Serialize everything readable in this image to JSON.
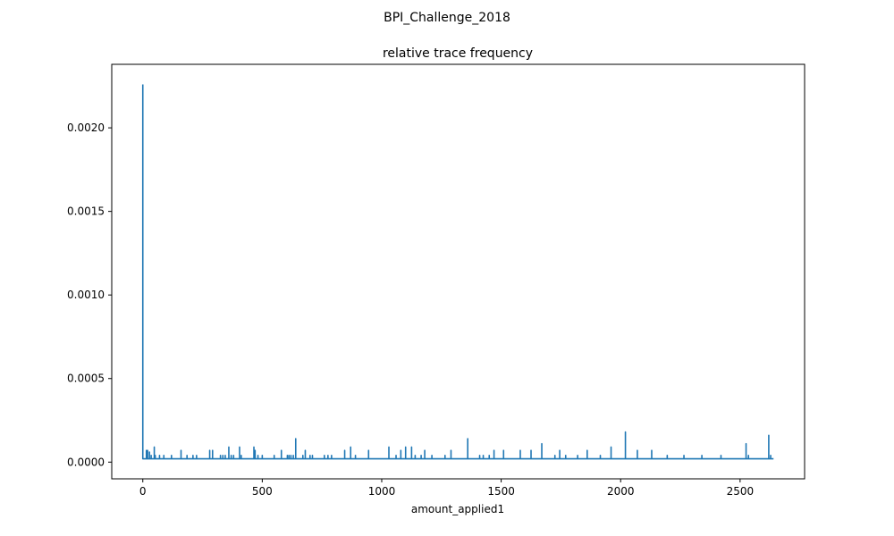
{
  "figure": {
    "suptitle": "BPI_Challenge_2018"
  },
  "chart_data": {
    "type": "line",
    "title": "relative trace frequency",
    "xlabel": "amount_applied1",
    "ylabel": "",
    "xlim": [
      -130,
      2770
    ],
    "ylim": [
      -0.0001,
      0.00238
    ],
    "xticks": [
      0,
      500,
      1000,
      1500,
      2000,
      2500
    ],
    "xtick_labels": [
      "0",
      "500",
      "1000",
      "1500",
      "2000",
      "2500"
    ],
    "yticks": [
      0.0,
      0.0005,
      0.001,
      0.0015,
      0.002
    ],
    "ytick_labels": [
      "0.0000",
      "0.0005",
      "0.0010",
      "0.0015",
      "0.0020"
    ],
    "grid": false,
    "color": "#1f77b4",
    "baseline": 2e-05,
    "x_end": 2640,
    "series": [
      {
        "x": [
          0,
          15,
          20,
          28,
          35,
          48,
          52,
          70,
          88,
          120,
          160,
          185,
          210,
          225,
          280,
          292,
          325,
          335,
          345,
          360,
          370,
          380,
          405,
          412,
          465,
          470,
          482,
          500,
          550,
          580,
          605,
          612,
          620,
          630,
          640,
          670,
          680,
          700,
          710,
          760,
          775,
          790,
          845,
          870,
          890,
          945,
          1030,
          1060,
          1080,
          1100,
          1125,
          1140,
          1165,
          1180,
          1210,
          1265,
          1290,
          1360,
          1410,
          1425,
          1450,
          1470,
          1510,
          1580,
          1625,
          1670,
          1725,
          1745,
          1770,
          1820,
          1860,
          1915,
          1960,
          2020,
          2070,
          2130,
          2195,
          2265,
          2340,
          2420,
          2525,
          2535,
          2620,
          2628
        ],
        "values": [
          0.00226,
          7e-05,
          7e-05,
          6e-05,
          4e-05,
          9e-05,
          4e-05,
          4e-05,
          4e-05,
          4e-05,
          7e-05,
          4e-05,
          4e-05,
          4e-05,
          7e-05,
          7e-05,
          4e-05,
          4e-05,
          4e-05,
          9e-05,
          4e-05,
          4e-05,
          9e-05,
          4e-05,
          9e-05,
          7e-05,
          4e-05,
          4e-05,
          4e-05,
          7e-05,
          4e-05,
          4e-05,
          4e-05,
          4e-05,
          0.00014,
          4e-05,
          7e-05,
          4e-05,
          4e-05,
          4e-05,
          4e-05,
          4e-05,
          7e-05,
          9e-05,
          4e-05,
          7e-05,
          9e-05,
          4e-05,
          7e-05,
          9e-05,
          9e-05,
          4e-05,
          4e-05,
          7e-05,
          4e-05,
          4e-05,
          7e-05,
          0.00014,
          4e-05,
          4e-05,
          4e-05,
          7e-05,
          7e-05,
          7e-05,
          7e-05,
          0.00011,
          4e-05,
          7e-05,
          4e-05,
          4e-05,
          7e-05,
          4e-05,
          9e-05,
          0.00018,
          7e-05,
          7e-05,
          4e-05,
          4e-05,
          4e-05,
          4e-05,
          0.00011,
          4e-05,
          0.00016,
          4e-05
        ]
      }
    ]
  }
}
